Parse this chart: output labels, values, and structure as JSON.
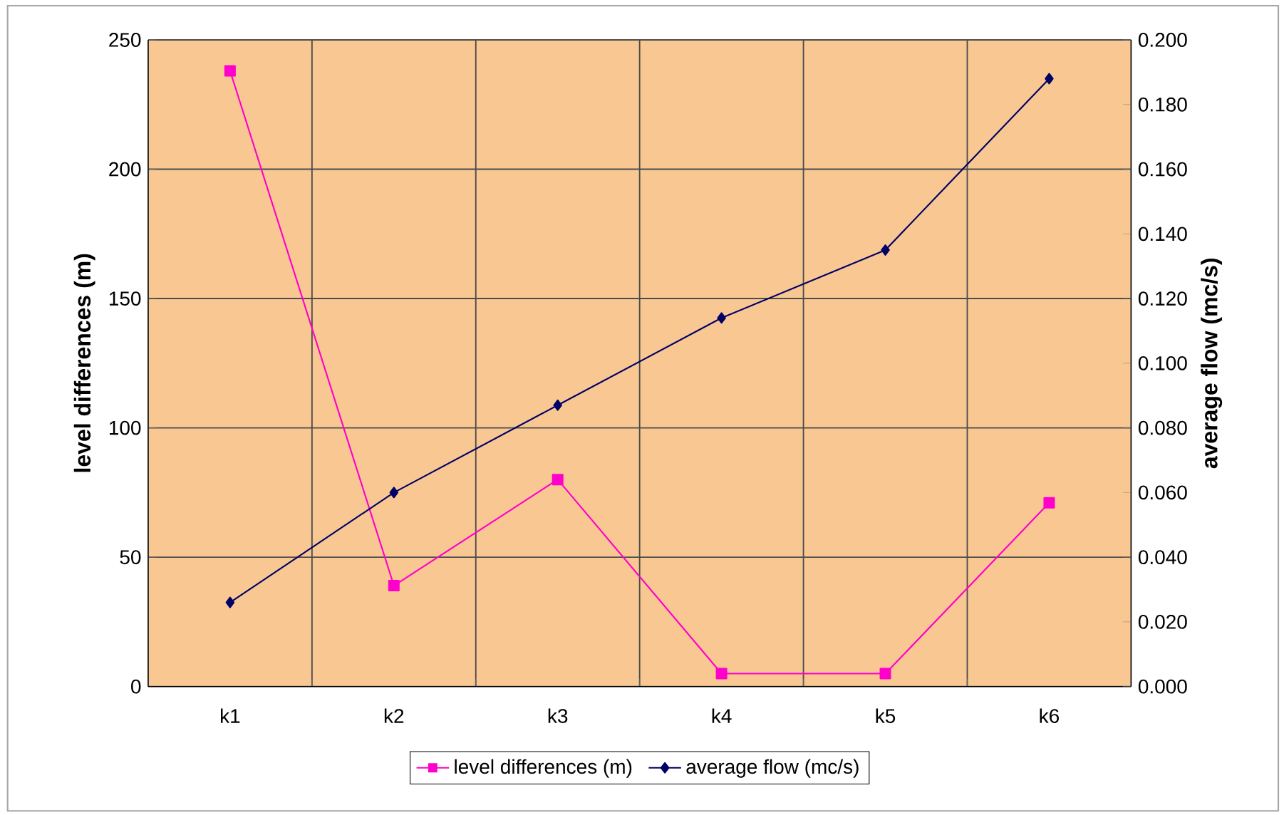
{
  "chart_data": {
    "type": "line",
    "ylabel": "level differences (m)",
    "y2label": "average flow (mc/s)",
    "categories": [
      "k1",
      "k2",
      "k3",
      "k4",
      "k5",
      "k6"
    ],
    "series": [
      {
        "name": "level differences (m)",
        "color": "#ff00cc",
        "marker": "square",
        "values": [
          238,
          39,
          80,
          5,
          5,
          71
        ]
      },
      {
        "name": "average flow (mc/s)",
        "color": "#000066",
        "marker": "diamond",
        "axis": "y2",
        "values": [
          0.026,
          0.06,
          0.087,
          0.114,
          0.135,
          0.188
        ]
      }
    ],
    "ylim": [
      0,
      250
    ],
    "yticks": [
      0,
      50,
      100,
      150,
      200,
      250
    ],
    "y2lim": [
      0,
      0.2
    ],
    "y2ticks": [
      {
        "value": 0,
        "label": "0.000"
      },
      {
        "value": 0.02,
        "label": "0.020"
      },
      {
        "value": 0.04,
        "label": "0.040"
      },
      {
        "value": 0.06,
        "label": "0.060"
      },
      {
        "value": 0.08,
        "label": "0.080"
      },
      {
        "value": 0.1,
        "label": "0.100"
      },
      {
        "value": 0.12,
        "label": "0.120"
      },
      {
        "value": 0.14,
        "label": "0.140"
      },
      {
        "value": 0.16,
        "label": "0.160"
      },
      {
        "value": 0.18,
        "label": "0.180"
      },
      {
        "value": 0.2,
        "label": "0.200"
      }
    ],
    "grid": true,
    "legend": "bottom",
    "line_style": "solid"
  }
}
